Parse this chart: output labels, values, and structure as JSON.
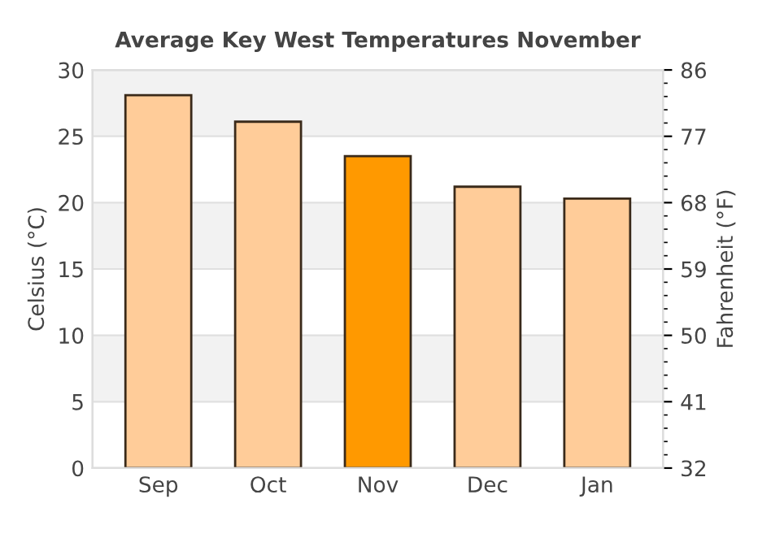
{
  "chart_data": {
    "type": "bar",
    "title": "Average Key West Temperatures November",
    "categories": [
      "Sep",
      "Oct",
      "Nov",
      "Dec",
      "Jan"
    ],
    "series": [
      {
        "colors": [
          "#ffcc99",
          "#ffcc99",
          "#ff9900",
          "#ffcc99",
          "#ffcc99"
        ],
        "values": [
          28.1,
          26.1,
          23.5,
          21.2,
          20.3
        ]
      }
    ],
    "ylabel": "Celsius (°C)",
    "y2label": "Fahrenheit (°F)",
    "ylim": [
      0,
      30
    ],
    "yticks": [
      0,
      5,
      10,
      15,
      20,
      25,
      30
    ],
    "y2lim": [
      32,
      86
    ],
    "y2ticks": [
      32,
      41,
      50,
      59,
      68,
      77,
      86
    ],
    "bands": [
      {
        "axis": "y",
        "from": 5,
        "to": 10,
        "color": "#f2f2f2"
      },
      {
        "axis": "y",
        "from": 15,
        "to": 20,
        "color": "#f2f2f2"
      },
      {
        "axis": "y",
        "from": 25,
        "to": 30,
        "color": "#f2f2f2"
      }
    ],
    "grid": "y",
    "legend": false
  }
}
